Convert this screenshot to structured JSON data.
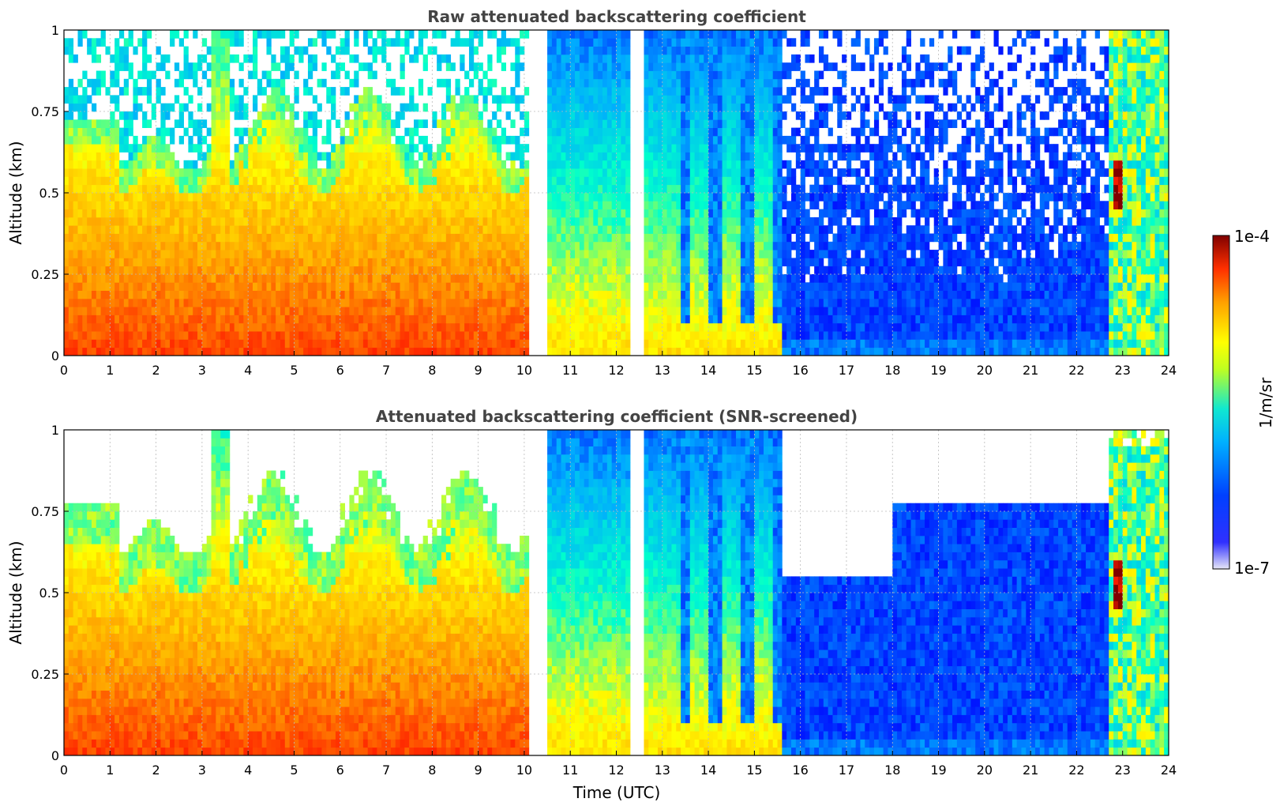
{
  "chart_data": [
    {
      "type": "heatmap",
      "title": "Raw attenuated backscattering coefficient",
      "xlabel": "",
      "ylabel": "Altitude (km)",
      "xlim": [
        0,
        24
      ],
      "ylim": [
        0,
        1
      ],
      "x_ticks": [
        "0",
        "1",
        "2",
        "3",
        "4",
        "5",
        "6",
        "7",
        "8",
        "9",
        "10",
        "11",
        "12",
        "13",
        "14",
        "15",
        "16",
        "17",
        "18",
        "19",
        "20",
        "21",
        "22",
        "23",
        "24"
      ],
      "y_ticks": [
        "0",
        "0.25",
        "0.5",
        "0.75",
        "1"
      ],
      "grid": true,
      "screened": false,
      "data_gaps_utc": [
        [
          10.15,
          10.5
        ],
        [
          12.3,
          12.6
        ]
      ],
      "low_signal_blue_region_utc": [
        15.6,
        22.7
      ]
    },
    {
      "type": "heatmap",
      "title": "Attenuated backscattering coefficient (SNR-screened)",
      "xlabel": "Time (UTC)",
      "ylabel": "Altitude (km)",
      "xlim": [
        0,
        24
      ],
      "ylim": [
        0,
        1
      ],
      "x_ticks": [
        "0",
        "1",
        "2",
        "3",
        "4",
        "5",
        "6",
        "7",
        "8",
        "9",
        "10",
        "11",
        "12",
        "13",
        "14",
        "15",
        "16",
        "17",
        "18",
        "19",
        "20",
        "21",
        "22",
        "23",
        "24"
      ],
      "y_ticks": [
        "0",
        "0.25",
        "0.5",
        "0.75",
        "1"
      ],
      "grid": true,
      "screened": true,
      "data_gaps_utc": [
        [
          10.15,
          10.5
        ],
        [
          12.3,
          12.6
        ]
      ],
      "low_signal_blue_region_utc": [
        15.6,
        22.7
      ]
    }
  ],
  "colorbar": {
    "label": "1/m/sr",
    "max_label": "1e-4",
    "min_label": "1e-7",
    "scale": "log",
    "colormap": [
      "#e6e6f7",
      "#0000ff",
      "#00aaff",
      "#00ffcc",
      "#ffff00",
      "#ffa000",
      "#ff2000",
      "#800000"
    ]
  }
}
